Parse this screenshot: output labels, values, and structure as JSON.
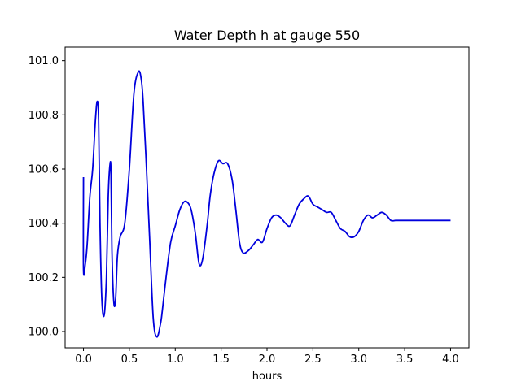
{
  "chart_data": {
    "type": "line",
    "title": "Water Depth h at gauge 550",
    "xlabel": "hours",
    "ylabel": "",
    "xlim": [
      -0.2,
      4.2
    ],
    "ylim": [
      99.94,
      101.05
    ],
    "grid": false,
    "x_ticks": [
      0.0,
      0.5,
      1.0,
      1.5,
      2.0,
      2.5,
      3.0,
      3.5,
      4.0
    ],
    "x_tick_labels": [
      "0.0",
      "0.5",
      "1.0",
      "1.5",
      "2.0",
      "2.5",
      "3.0",
      "3.5",
      "4.0"
    ],
    "y_ticks": [
      100.0,
      100.2,
      100.4,
      100.6,
      100.8,
      101.0
    ],
    "y_tick_labels": [
      "100.0",
      "100.2",
      "100.4",
      "100.6",
      "100.8",
      "101.0"
    ],
    "series": [
      {
        "color": "#0000dd",
        "x": [
          0.0,
          0.0,
          0.02,
          0.04,
          0.07,
          0.1,
          0.13,
          0.15,
          0.165,
          0.18,
          0.2,
          0.225,
          0.25,
          0.27,
          0.29,
          0.3,
          0.31,
          0.33,
          0.35,
          0.37,
          0.4,
          0.45,
          0.5,
          0.55,
          0.6,
          0.63,
          0.65,
          0.68,
          0.72,
          0.76,
          0.8,
          0.84,
          0.86,
          0.9,
          0.95,
          1.0,
          1.05,
          1.1,
          1.15,
          1.18,
          1.22,
          1.26,
          1.3,
          1.35,
          1.38,
          1.42,
          1.47,
          1.52,
          1.57,
          1.62,
          1.66,
          1.7,
          1.74,
          1.8,
          1.85,
          1.9,
          1.95,
          2.0,
          2.05,
          2.1,
          2.15,
          2.2,
          2.25,
          2.3,
          2.35,
          2.4,
          2.45,
          2.5,
          2.55,
          2.6,
          2.65,
          2.7,
          2.75,
          2.8,
          2.85,
          2.9,
          2.95,
          3.0,
          3.05,
          3.1,
          3.15,
          3.2,
          3.25,
          3.3,
          3.35,
          3.4,
          3.45,
          3.5,
          3.55,
          3.6,
          3.65,
          3.7,
          3.75,
          3.8,
          3.85,
          3.9,
          3.95,
          4.0
        ],
        "y": [
          100.57,
          100.23,
          100.25,
          100.32,
          100.5,
          100.6,
          100.78,
          100.85,
          100.78,
          100.4,
          100.12,
          100.06,
          100.2,
          100.5,
          100.62,
          100.58,
          100.3,
          100.11,
          100.12,
          100.28,
          100.35,
          100.4,
          100.6,
          100.88,
          100.96,
          100.93,
          100.85,
          100.65,
          100.35,
          100.05,
          99.98,
          100.03,
          100.08,
          100.2,
          100.33,
          100.39,
          100.45,
          100.48,
          100.47,
          100.44,
          100.36,
          100.25,
          100.27,
          100.4,
          100.5,
          100.58,
          100.63,
          100.62,
          100.62,
          100.56,
          100.45,
          100.33,
          100.29,
          100.3,
          100.32,
          100.34,
          100.33,
          100.38,
          100.42,
          100.43,
          100.42,
          100.4,
          100.39,
          100.43,
          100.47,
          100.49,
          100.5,
          100.47,
          100.46,
          100.45,
          100.44,
          100.44,
          100.41,
          100.38,
          100.37,
          100.35,
          100.35,
          100.37,
          100.41,
          100.43,
          100.42,
          100.43,
          100.44,
          100.43,
          100.41,
          100.41,
          100.41,
          100.41,
          100.41,
          100.41,
          100.41,
          100.41,
          100.41,
          100.41,
          100.41,
          100.41,
          100.41,
          100.41
        ]
      }
    ]
  }
}
